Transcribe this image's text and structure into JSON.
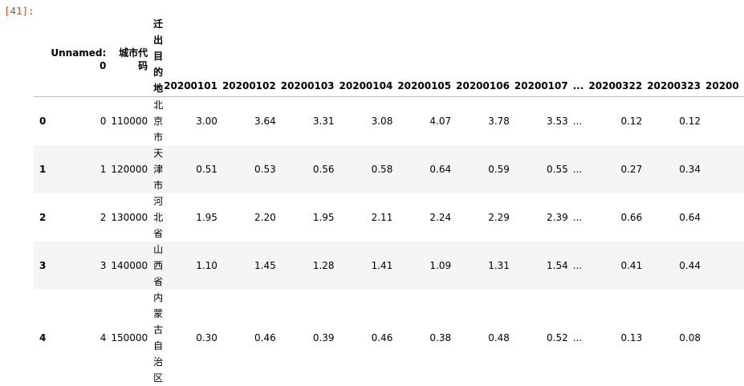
{
  "prompt": "[41]:",
  "table": {
    "columns": [
      "",
      "Unnamed: 0",
      "城市代码",
      "迁出目的地",
      "20200101",
      "20200102",
      "20200103",
      "20200104",
      "20200105",
      "20200106",
      "20200107",
      "...",
      "20200322",
      "20200323",
      "20200"
    ],
    "header_unnamed_line1": "Unnamed:",
    "header_unnamed_line2": "0",
    "header_city_line1": "城市代",
    "header_city_line2": "码",
    "rows": [
      [
        "0",
        "0",
        "110000",
        "北京市",
        "3.00",
        "3.64",
        "3.31",
        "3.08",
        "4.07",
        "3.78",
        "3.53",
        "...",
        "0.12",
        "0.12",
        ""
      ],
      [
        "1",
        "1",
        "120000",
        "天津市",
        "0.51",
        "0.53",
        "0.56",
        "0.58",
        "0.64",
        "0.59",
        "0.55",
        "...",
        "0.27",
        "0.34",
        ""
      ],
      [
        "2",
        "2",
        "130000",
        "河北省",
        "1.95",
        "2.20",
        "1.95",
        "2.11",
        "2.24",
        "2.29",
        "2.39",
        "...",
        "0.66",
        "0.64",
        ""
      ],
      [
        "3",
        "3",
        "140000",
        "山西省",
        "1.10",
        "1.45",
        "1.28",
        "1.41",
        "1.09",
        "1.31",
        "1.54",
        "...",
        "0.41",
        "0.44",
        ""
      ],
      [
        "4",
        "4",
        "150000",
        "内蒙古自治区",
        "0.30",
        "0.46",
        "0.39",
        "0.46",
        "0.38",
        "0.48",
        "0.52",
        "...",
        "0.13",
        "0.08",
        ""
      ]
    ]
  }
}
